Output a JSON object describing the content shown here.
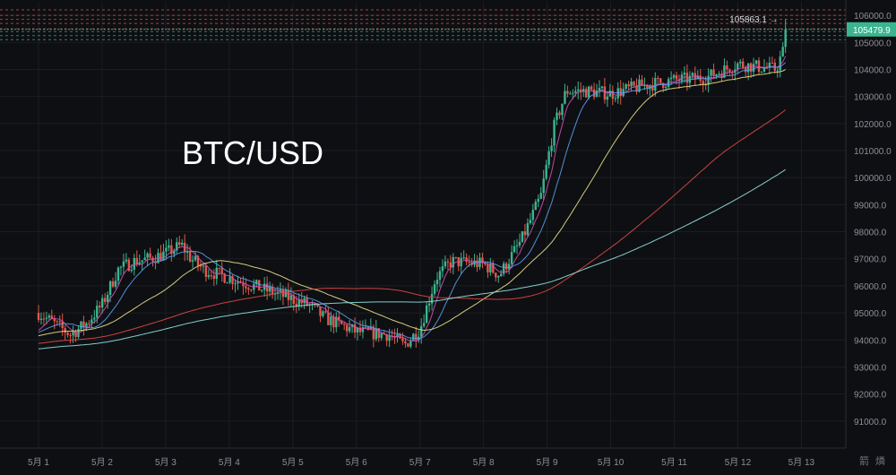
{
  "chart_data": {
    "type": "candlestick",
    "title": "BTC/USD",
    "y_axis": {
      "ticks": [
        "106000.0",
        "105000.0",
        "104000.0",
        "103000.0",
        "102000.0",
        "101000.0",
        "100000.0",
        "99000.0",
        "98000.0",
        "97000.0",
        "96000.0",
        "95000.0",
        "94000.0",
        "93000.0",
        "92000.0",
        "91000.0"
      ],
      "ylim": [
        90000,
        106500
      ],
      "position": "right",
      "current_price_label": "105479.9",
      "current_price": 105479.9,
      "high_marker_label": "105863.1",
      "high_marker_value": 105863.1
    },
    "x_axis": {
      "ticks": [
        "5月 1",
        "5月 2",
        "5月 3",
        "5月 4",
        "5月 5",
        "5月 6",
        "5月 7",
        "5月 8",
        "5月 9",
        "5月 10",
        "5月 11",
        "5月 12",
        "5月 13"
      ]
    },
    "anchors": [
      [
        0,
        95000
      ],
      [
        0.25,
        94600
      ],
      [
        0.5,
        94200
      ],
      [
        0.75,
        94600
      ],
      [
        1,
        95300
      ],
      [
        1.25,
        96600
      ],
      [
        1.5,
        96900
      ],
      [
        1.75,
        97000
      ],
      [
        2,
        97200
      ],
      [
        2.25,
        97500
      ],
      [
        2.4,
        97000
      ],
      [
        2.6,
        96600
      ],
      [
        3,
        96300
      ],
      [
        3.5,
        95900
      ],
      [
        4,
        95500
      ],
      [
        4.25,
        95300
      ],
      [
        4.5,
        94800
      ],
      [
        5,
        94300
      ],
      [
        5.5,
        94200
      ],
      [
        5.75,
        93800
      ],
      [
        6,
        94400
      ],
      [
        6.25,
        96300
      ],
      [
        6.5,
        96900
      ],
      [
        7,
        96800
      ],
      [
        7.25,
        96400
      ],
      [
        7.6,
        97700
      ],
      [
        7.9,
        99300
      ],
      [
        8.1,
        101800
      ],
      [
        8.3,
        103200
      ],
      [
        8.6,
        103200
      ],
      [
        9,
        103100
      ],
      [
        9.5,
        103400
      ],
      [
        10,
        103600
      ],
      [
        10.5,
        103700
      ],
      [
        11,
        104200
      ],
      [
        11.3,
        104100
      ],
      [
        11.6,
        104000
      ],
      [
        11.75,
        104900
      ]
    ],
    "ma_lines": [
      {
        "name": "MA-pink",
        "color": "#d64fb6",
        "period": 6
      },
      {
        "name": "MA-blue",
        "color": "#5b9cf0",
        "period": 14
      },
      {
        "name": "MA-yellow",
        "color": "#e8e08a",
        "period": 40
      },
      {
        "name": "MA-red",
        "color": "#e04848",
        "period": 110
      },
      {
        "name": "MA-cyan",
        "color": "#8fe3e3",
        "period": 160
      }
    ],
    "ask_levels": [
      105500,
      105700,
      105850,
      106000,
      106200
    ],
    "bid_levels": [
      105100,
      105250,
      105400
    ],
    "colors": {
      "up": "#3bb58f",
      "down": "#e2574c",
      "price_tag": "#3bb58f",
      "grid": "#1b1d22",
      "background": "#0e0f12",
      "axis_text": "#8b8f97",
      "title": "#ffffff"
    },
    "bottom_controls": [
      "箭",
      "燐"
    ]
  }
}
